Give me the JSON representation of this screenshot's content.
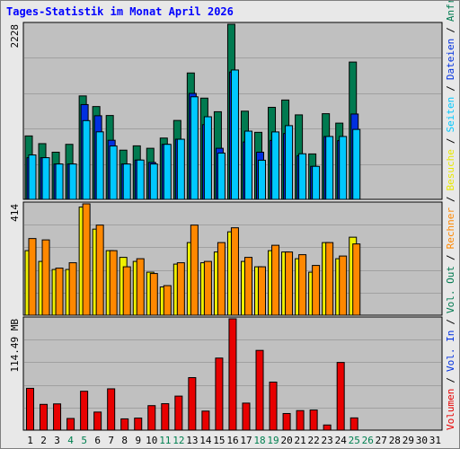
{
  "title": "Tages-Statistik im Monat April 2026",
  "colors": {
    "panel_bg": "#c0c0c0",
    "grid": "#a0a0a0",
    "anfragen": "#007a50",
    "dateien": "#0030e0",
    "seiten": "#00c8ff",
    "besuche": "#f0f000",
    "rechner": "#ff8800",
    "volumen": "#e80000",
    "title": "#0000ff",
    "tick_default": "#000000",
    "tick_weekend": "#008050"
  },
  "right_labels": {
    "volumen": "Volumen",
    "vol_in": "Vol. In",
    "vol_out": "Vol. Out",
    "rechner": "Rechner",
    "besuche": "Besuche",
    "seiten": "Seiten",
    "dateien": "Dateien",
    "anfragen": "Anfragen",
    "separator": "/"
  },
  "chart_data": [
    {
      "type": "bar",
      "panel": "hits",
      "ymax_label": "2228",
      "ymax": 2228,
      "categories": [
        "1",
        "2",
        "3",
        "4",
        "5",
        "6",
        "7",
        "8",
        "9",
        "10",
        "11",
        "12",
        "13",
        "14",
        "15",
        "16",
        "17",
        "18",
        "19",
        "20",
        "21",
        "22",
        "23",
        "24",
        "25",
        "26",
        "27",
        "28",
        "29",
        "30",
        "31"
      ],
      "weekend_days": [
        "4",
        "5",
        "11",
        "12",
        "18",
        "19",
        "25",
        "26"
      ],
      "series": [
        {
          "name": "Anfragen",
          "color_key": "anfragen",
          "values": [
            807,
            709,
            600,
            700,
            1316,
            1181,
            1067,
            626,
            681,
            650,
            780,
            1004,
            1608,
            1288,
            1115,
            2228,
            1122,
            853,
            1171,
            1264,
            1075,
            578,
            1090,
            970,
            1747,
            0,
            0,
            0,
            0,
            0,
            0
          ]
        },
        {
          "name": "Dateien",
          "color_key": "dateien",
          "values": [
            530,
            530,
            450,
            450,
            1206,
            1064,
            752,
            450,
            500,
            470,
            700,
            765,
            1348,
            951,
            650,
            1620,
            730,
            600,
            750,
            838,
            556,
            420,
            800,
            747,
            1086,
            0,
            0,
            0,
            0,
            0,
            0
          ]
        },
        {
          "name": "Seiten",
          "color_key": "seiten",
          "values": [
            565,
            530,
            450,
            450,
            1002,
            859,
            679,
            450,
            500,
            450,
            700,
            765,
            1305,
            1051,
            589,
            1646,
            868,
            498,
            858,
            938,
            580,
            420,
            800,
            800,
            890,
            0,
            0,
            0,
            0,
            0,
            0
          ]
        }
      ]
    },
    {
      "type": "bar",
      "panel": "visits",
      "ymax_label": "414",
      "ymax": 414,
      "series": [
        {
          "name": "Besuche",
          "color_key": "besuche",
          "values": [
            240,
            200,
            170,
            170,
            402,
            320,
            240,
            215,
            200,
            160,
            105,
            190,
            270,
            195,
            235,
            310,
            200,
            180,
            240,
            235,
            210,
            160,
            270,
            210,
            290,
            0,
            0,
            0,
            0,
            0,
            0
          ]
        },
        {
          "name": "Rechner",
          "color_key": "rechner",
          "values": [
            285,
            280,
            175,
            195,
            414,
            335,
            240,
            180,
            210,
            155,
            110,
            195,
            335,
            200,
            270,
            325,
            215,
            180,
            260,
            235,
            225,
            185,
            270,
            220,
            265,
            0,
            0,
            0,
            0,
            0,
            0
          ]
        }
      ]
    },
    {
      "type": "bar",
      "panel": "volume",
      "ymax_label": "114.49 MB",
      "ymax": 114.49,
      "series": [
        {
          "name": "Volumen",
          "color_key": "volumen",
          "values": [
            43.0,
            26.5,
            27.0,
            12.0,
            40.0,
            18.6,
            42.5,
            11.6,
            12.4,
            25.2,
            27.2,
            35.0,
            54.0,
            19.6,
            74.1,
            114.49,
            27.8,
            82.0,
            49.4,
            17.1,
            20.1,
            20.7,
            5.3,
            69.6,
            12.6,
            0,
            0,
            0,
            0,
            0,
            0
          ]
        }
      ]
    }
  ]
}
